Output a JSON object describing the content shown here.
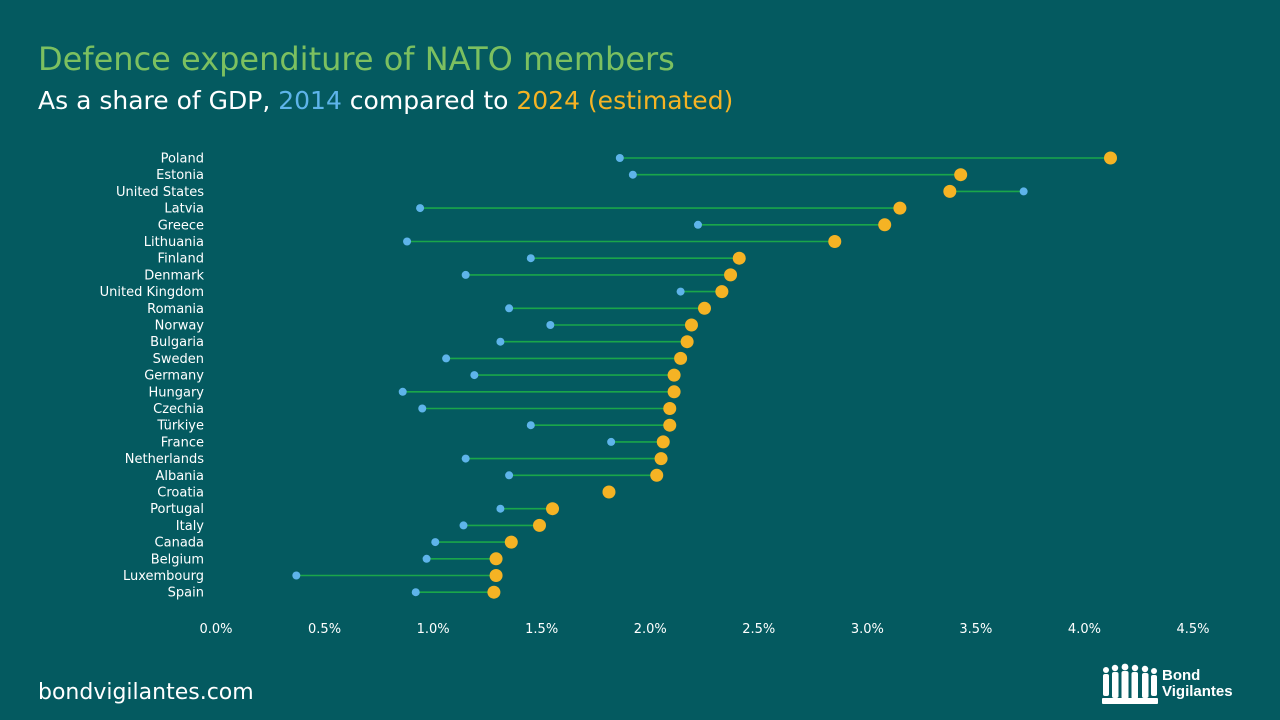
{
  "header": {
    "title": "Defence expenditure of NATO members",
    "subtitle_prefix": "As a share of GDP, ",
    "subtitle_year1": "2014",
    "subtitle_mid": " compared to ",
    "subtitle_year2": "2024 (estimated)"
  },
  "footer": {
    "site": "bondvigilantes.com",
    "logo_line1": "Bond",
    "logo_line2": "Vigilantes"
  },
  "colors": {
    "background": "#045a60",
    "title": "#7cc060",
    "dot_2014": "#5eb4ea",
    "dot_2024": "#f5b324",
    "connector": "#1aa64a"
  },
  "chart_data": {
    "type": "dumbbell",
    "title": "Defence expenditure of NATO members",
    "subtitle": "As a share of GDP, 2014 compared to 2024 (estimated)",
    "series_names": [
      "2014",
      "2024 (estimated)"
    ],
    "xlim": [
      0,
      4.5
    ],
    "x_ticks": [
      0.0,
      0.5,
      1.0,
      1.5,
      2.0,
      2.5,
      3.0,
      3.5,
      4.0,
      4.5
    ],
    "x_tick_labels": [
      "0.0%",
      "0.5%",
      "1.0%",
      "1.5%",
      "2.0%",
      "2.5%",
      "3.0%",
      "3.5%",
      "4.0%",
      "4.5%"
    ],
    "categories": [
      "Poland",
      "Estonia",
      "United States",
      "Latvia",
      "Greece",
      "Lithuania",
      "Finland",
      "Denmark",
      "United Kingdom",
      "Romania",
      "Norway",
      "Bulgaria",
      "Sweden",
      "Germany",
      "Hungary",
      "Czechia",
      "Türkiye",
      "France",
      "Netherlands",
      "Albania",
      "Croatia",
      "Portugal",
      "Italy",
      "Canada",
      "Belgium",
      "Luxembourg",
      "Spain"
    ],
    "values_2014": [
      1.86,
      1.92,
      3.72,
      0.94,
      2.22,
      0.88,
      1.45,
      1.15,
      2.14,
      1.35,
      1.54,
      1.31,
      1.06,
      1.19,
      0.86,
      0.95,
      1.45,
      1.82,
      1.15,
      1.35,
      null,
      1.31,
      1.14,
      1.01,
      0.97,
      0.37,
      0.92
    ],
    "values_2024": [
      4.12,
      3.43,
      3.38,
      3.15,
      3.08,
      2.85,
      2.41,
      2.37,
      2.33,
      2.25,
      2.19,
      2.17,
      2.14,
      2.11,
      2.11,
      2.09,
      2.09,
      2.06,
      2.05,
      2.03,
      1.81,
      1.55,
      1.49,
      1.36,
      1.29,
      1.29,
      1.28
    ]
  }
}
